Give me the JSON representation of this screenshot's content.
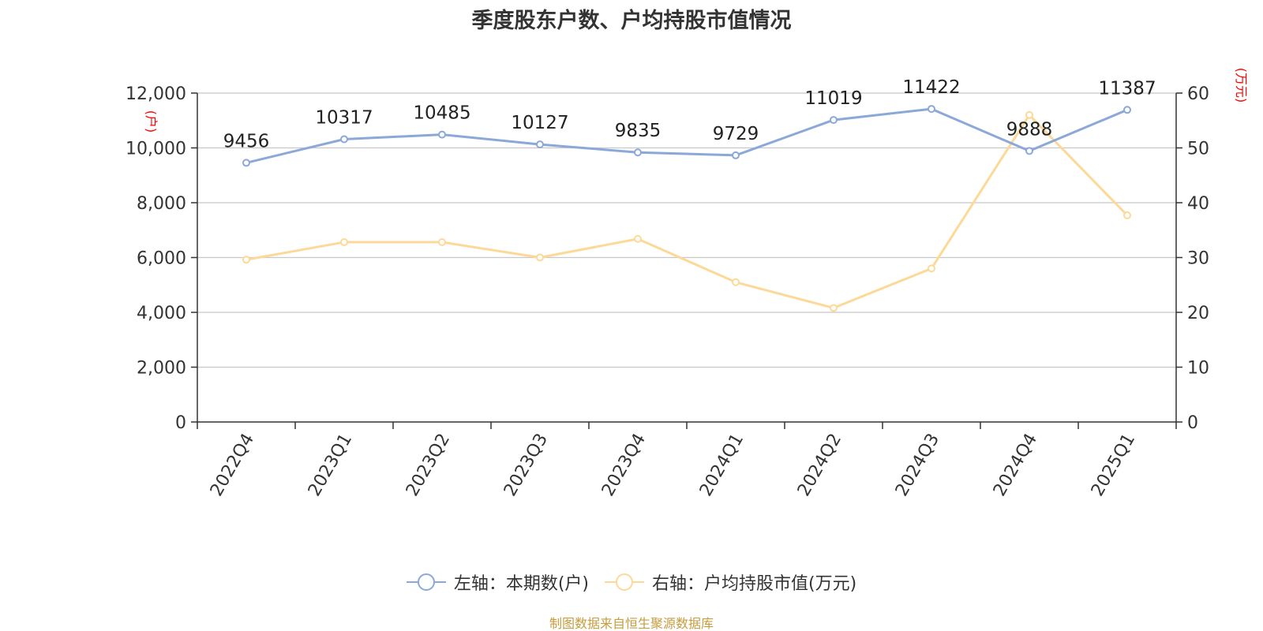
{
  "chart_data": {
    "type": "line",
    "title": "季度股东户数、户均持股市值情况",
    "categories": [
      "2022Q4",
      "2023Q1",
      "2023Q2",
      "2023Q3",
      "2023Q4",
      "2024Q1",
      "2024Q2",
      "2024Q3",
      "2024Q4",
      "2025Q1"
    ],
    "series": [
      {
        "name": "左轴：本期数(户)",
        "axis": "left",
        "color": "#8ba8d8",
        "values": [
          9456,
          10317,
          10485,
          10127,
          9835,
          9729,
          11019,
          11422,
          9888,
          11387
        ],
        "data_labels": [
          "9456",
          "10317",
          "10485",
          "10127",
          "9835",
          "9729",
          "11019",
          "11422",
          "9888",
          "11387"
        ]
      },
      {
        "name": "右轴：户均持股市值(万元)",
        "axis": "right",
        "color": "#fcd998",
        "values": [
          29.6,
          32.8,
          32.8,
          30.0,
          33.4,
          25.5,
          20.8,
          28.0,
          56.0,
          37.7
        ]
      }
    ],
    "y_left": {
      "label": "(户)",
      "ylim": [
        0,
        12000
      ],
      "ticks": [
        0,
        2000,
        4000,
        6000,
        8000,
        10000,
        12000
      ],
      "tick_labels": [
        "0",
        "2,000",
        "4,000",
        "6,000",
        "8,000",
        "10,000",
        "12,000"
      ]
    },
    "y_right": {
      "label": "(万元)",
      "ylim": [
        0,
        60
      ],
      "ticks": [
        0,
        10,
        20,
        30,
        40,
        50,
        60
      ],
      "tick_labels": [
        "0",
        "10",
        "20",
        "30",
        "40",
        "50",
        "60"
      ]
    },
    "grid": true,
    "legend_position": "bottom",
    "axis_label_color": "#ff0000",
    "source_text": "制图数据来自恒生聚源数据库",
    "source_color": "#c69c3e"
  }
}
